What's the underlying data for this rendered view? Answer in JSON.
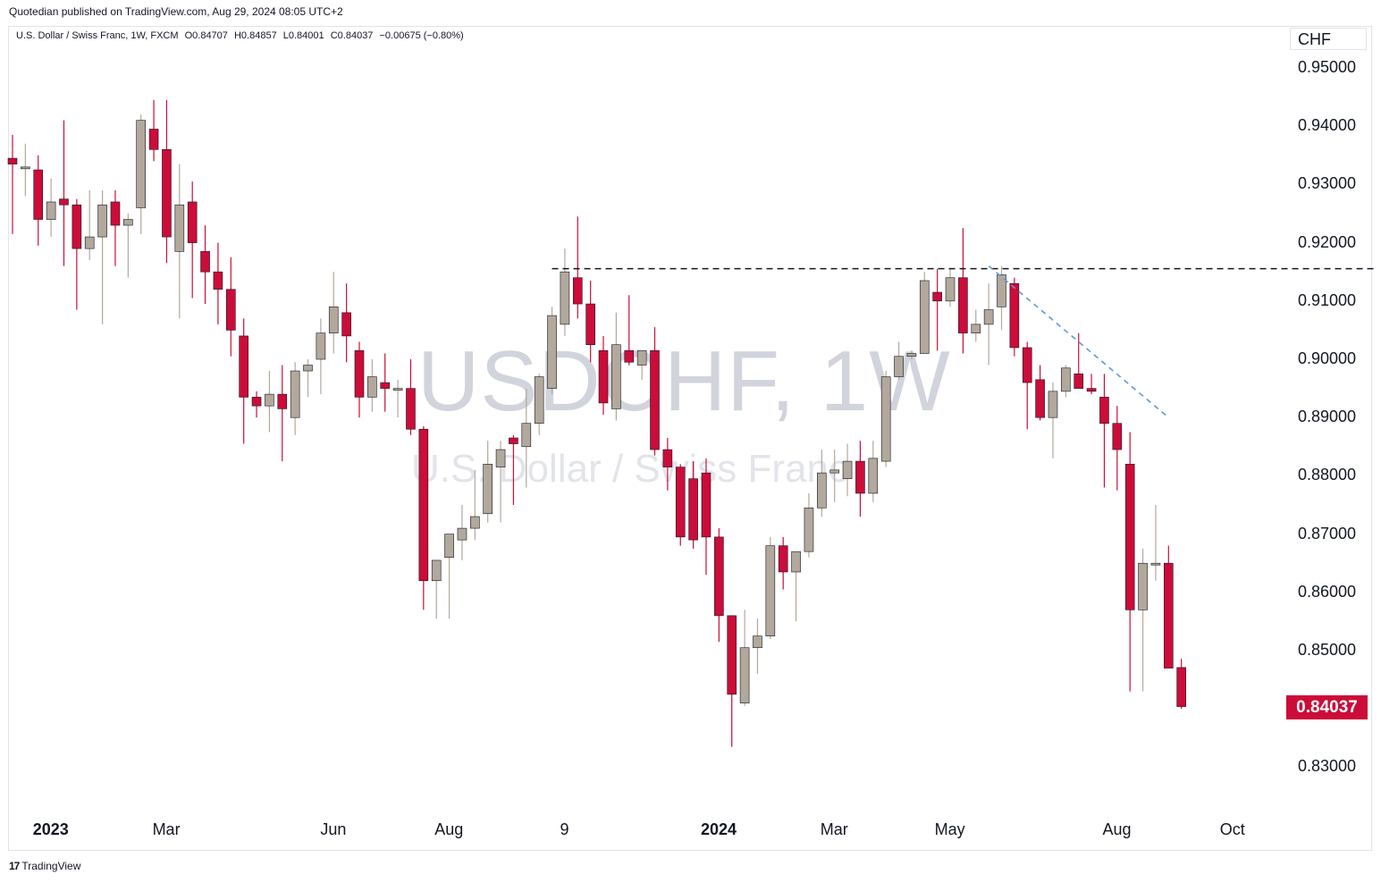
{
  "publisher": "Quotedian published on TradingView.com, Aug 29, 2024 08:05 UTC+2",
  "legend": {
    "symbol": "U.S. Dollar / Swiss Franc, 1W, FXCM",
    "open": "O0.84707",
    "high": "H0.84857",
    "low": "L0.84001",
    "close": "C0.84037",
    "change": "−0.00675 (−0.80%)"
  },
  "watermark": {
    "ticker": "USDCHF, 1W",
    "name": "U.S. Dollar / Swiss Franc"
  },
  "currency": "CHF",
  "last_price": "0.84037",
  "footer": {
    "logo": "17",
    "text": "TradingView"
  },
  "colors": {
    "up": "#b2a89c",
    "down": "#cc0c39",
    "resistance_line": "#131722",
    "trend_line": "#5b9bd5"
  },
  "chart_data": {
    "type": "candlestick",
    "interval": "1W",
    "ylim": [
      0.824,
      0.958
    ],
    "y_ticks": [
      "0.95000",
      "0.94000",
      "0.93000",
      "0.92000",
      "0.91000",
      "0.90000",
      "0.89000",
      "0.88000",
      "0.87000",
      "0.86000",
      "0.85000",
      "0.83000"
    ],
    "x_ticks": [
      {
        "label": "2023",
        "i": 2,
        "bold": true
      },
      {
        "label": "Mar",
        "i": 11,
        "bold": false
      },
      {
        "label": "Jun",
        "i": 24,
        "bold": false
      },
      {
        "label": "Aug",
        "i": 33,
        "bold": false
      },
      {
        "label": "9",
        "i": 42,
        "bold": false
      },
      {
        "label": "2024",
        "i": 54,
        "bold": true
      },
      {
        "label": "Mar",
        "i": 63,
        "bold": false
      },
      {
        "label": "May",
        "i": 72,
        "bold": false
      },
      {
        "label": "Aug",
        "i": 85,
        "bold": false
      },
      {
        "label": "Oct",
        "i": 94,
        "bold": false
      }
    ],
    "candles": [
      [
        0.9345,
        0.9385,
        0.9215,
        0.9335
      ],
      [
        0.933,
        0.937,
        0.928,
        0.933
      ],
      [
        0.9325,
        0.935,
        0.9195,
        0.924
      ],
      [
        0.924,
        0.931,
        0.921,
        0.927
      ],
      [
        0.9275,
        0.941,
        0.916,
        0.9265
      ],
      [
        0.9265,
        0.9275,
        0.9085,
        0.919
      ],
      [
        0.919,
        0.929,
        0.917,
        0.921
      ],
      [
        0.921,
        0.929,
        0.906,
        0.9265
      ],
      [
        0.927,
        0.929,
        0.916,
        0.923
      ],
      [
        0.923,
        0.925,
        0.914,
        0.924
      ],
      [
        0.926,
        0.942,
        0.9215,
        0.941
      ],
      [
        0.9395,
        0.9445,
        0.934,
        0.936
      ],
      [
        0.936,
        0.9445,
        0.9165,
        0.921
      ],
      [
        0.9185,
        0.9335,
        0.907,
        0.9265
      ],
      [
        0.927,
        0.9305,
        0.9105,
        0.92
      ],
      [
        0.9185,
        0.923,
        0.9095,
        0.915
      ],
      [
        0.915,
        0.92,
        0.906,
        0.912
      ],
      [
        0.912,
        0.9175,
        0.9005,
        0.905
      ],
      [
        0.904,
        0.907,
        0.8855,
        0.8935
      ],
      [
        0.8935,
        0.8945,
        0.89,
        0.892
      ],
      [
        0.892,
        0.898,
        0.8875,
        0.894
      ],
      [
        0.894,
        0.899,
        0.8825,
        0.8915
      ],
      [
        0.89,
        0.8995,
        0.887,
        0.898
      ],
      [
        0.898,
        0.9,
        0.8935,
        0.899
      ],
      [
        0.9,
        0.907,
        0.894,
        0.9045
      ],
      [
        0.9045,
        0.915,
        0.901,
        0.909
      ],
      [
        0.908,
        0.913,
        0.8995,
        0.904
      ],
      [
        0.9015,
        0.903,
        0.89,
        0.8935
      ],
      [
        0.8935,
        0.9,
        0.891,
        0.897
      ],
      [
        0.896,
        0.901,
        0.891,
        0.895
      ],
      [
        0.895,
        0.8965,
        0.89,
        0.895
      ],
      [
        0.895,
        0.9,
        0.887,
        0.888
      ],
      [
        0.888,
        0.8885,
        0.857,
        0.862
      ],
      [
        0.862,
        0.865,
        0.8555,
        0.8655
      ],
      [
        0.866,
        0.87,
        0.8555,
        0.87
      ],
      [
        0.869,
        0.875,
        0.8655,
        0.871
      ],
      [
        0.871,
        0.881,
        0.869,
        0.873
      ],
      [
        0.8735,
        0.886,
        0.872,
        0.882
      ],
      [
        0.8815,
        0.886,
        0.872,
        0.8845
      ],
      [
        0.8865,
        0.887,
        0.875,
        0.8855
      ],
      [
        0.885,
        0.895,
        0.878,
        0.889
      ],
      [
        0.889,
        0.8975,
        0.887,
        0.897
      ],
      [
        0.895,
        0.909,
        0.894,
        0.9075
      ],
      [
        0.906,
        0.919,
        0.904,
        0.915
      ],
      [
        0.914,
        0.9245,
        0.907,
        0.9095
      ],
      [
        0.9095,
        0.9135,
        0.8995,
        0.9025
      ],
      [
        0.9015,
        0.904,
        0.8905,
        0.8925
      ],
      [
        0.8915,
        0.908,
        0.8895,
        0.9025
      ],
      [
        0.9015,
        0.911,
        0.899,
        0.8995
      ],
      [
        0.899,
        0.901,
        0.8965,
        0.9015
      ],
      [
        0.9015,
        0.9055,
        0.8835,
        0.8845
      ],
      [
        0.8845,
        0.8865,
        0.8775,
        0.8815
      ],
      [
        0.8815,
        0.882,
        0.868,
        0.8695
      ],
      [
        0.8795,
        0.8825,
        0.8675,
        0.869
      ],
      [
        0.8805,
        0.883,
        0.863,
        0.8695
      ],
      [
        0.8695,
        0.871,
        0.8515,
        0.856
      ],
      [
        0.856,
        0.856,
        0.8335,
        0.8425
      ],
      [
        0.841,
        0.857,
        0.8405,
        0.8505
      ],
      [
        0.8505,
        0.8555,
        0.846,
        0.8525
      ],
      [
        0.8525,
        0.8695,
        0.852,
        0.868
      ],
      [
        0.868,
        0.8695,
        0.8605,
        0.8635
      ],
      [
        0.8635,
        0.867,
        0.855,
        0.867
      ],
      [
        0.867,
        0.877,
        0.866,
        0.8745
      ],
      [
        0.8745,
        0.8845,
        0.873,
        0.8805
      ],
      [
        0.8805,
        0.8845,
        0.8755,
        0.881
      ],
      [
        0.8795,
        0.8855,
        0.8765,
        0.8825
      ],
      [
        0.8825,
        0.886,
        0.873,
        0.877
      ],
      [
        0.877,
        0.886,
        0.8755,
        0.883
      ],
      [
        0.8825,
        0.898,
        0.8815,
        0.897
      ],
      [
        0.897,
        0.903,
        0.8965,
        0.9005
      ],
      [
        0.9005,
        0.9015,
        0.9,
        0.901
      ],
      [
        0.901,
        0.915,
        0.901,
        0.9135
      ],
      [
        0.9115,
        0.9155,
        0.9015,
        0.91
      ],
      [
        0.91,
        0.9155,
        0.909,
        0.914
      ],
      [
        0.914,
        0.9225,
        0.901,
        0.9045
      ],
      [
        0.9045,
        0.9085,
        0.903,
        0.906
      ],
      [
        0.906,
        0.913,
        0.899,
        0.9085
      ],
      [
        0.909,
        0.916,
        0.905,
        0.9145
      ],
      [
        0.913,
        0.914,
        0.9005,
        0.902
      ],
      [
        0.902,
        0.903,
        0.888,
        0.896
      ],
      [
        0.8965,
        0.899,
        0.8895,
        0.89
      ],
      [
        0.89,
        0.896,
        0.883,
        0.8945
      ],
      [
        0.8945,
        0.899,
        0.8935,
        0.8985
      ],
      [
        0.8975,
        0.9045,
        0.895,
        0.895
      ],
      [
        0.895,
        0.8975,
        0.894,
        0.8945
      ],
      [
        0.8935,
        0.8975,
        0.878,
        0.889
      ],
      [
        0.889,
        0.892,
        0.8775,
        0.8845
      ],
      [
        0.882,
        0.8875,
        0.843,
        0.857
      ],
      [
        0.857,
        0.8675,
        0.843,
        0.865
      ],
      [
        0.865,
        0.875,
        0.862,
        0.865
      ],
      [
        0.865,
        0.868,
        0.847,
        0.847
      ],
      [
        0.8471,
        0.8486,
        0.84,
        0.8404
      ]
    ],
    "annotations": [
      {
        "type": "horizontal_dashed",
        "price": 0.91555,
        "from_index": 42,
        "to_index": 106
      },
      {
        "type": "diagonal_dashed",
        "from": [
          76,
          0.916
        ],
        "to": [
          90,
          0.89
        ]
      }
    ]
  }
}
